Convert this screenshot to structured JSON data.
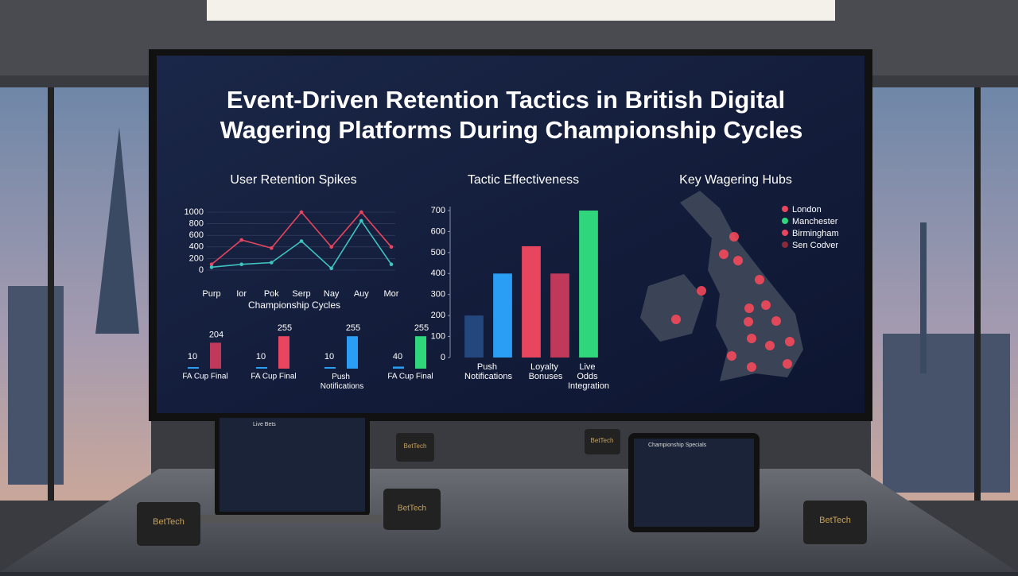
{
  "title_lines": [
    "Event-Driven Retention Tactics in British Digital",
    "Wagering Platforms During Championship Cycles"
  ],
  "chart_data": [
    {
      "type": "line",
      "title": "User Retention Spikes",
      "x_label": "Championship Cycles",
      "categories": [
        "Purp",
        "Ior",
        "Pok",
        "Serp",
        "Nay",
        "Auy",
        "Mor"
      ],
      "series": [
        {
          "color": "#e8455e",
          "values": [
            100,
            520,
            380,
            1000,
            400,
            1000,
            400
          ]
        },
        {
          "color": "#3fc4c0",
          "values": [
            50,
            100,
            130,
            500,
            30,
            850,
            100
          ]
        }
      ],
      "ylim": [
        0,
        1000
      ],
      "yticks": [
        0,
        200,
        400,
        600,
        800,
        1000
      ]
    },
    {
      "type": "bar",
      "title": "Tactic Effectiveness",
      "categories": [
        "Push Notifications",
        null,
        "Loyalty Bonuses",
        null,
        "Live Odds Integration"
      ],
      "values": [
        200,
        400,
        530,
        400,
        700
      ],
      "colors": [
        "#24487e",
        "#2a9df4",
        "#e8455e",
        "#c0395a",
        "#2fd67b"
      ],
      "ylim": [
        0,
        700
      ],
      "yticks": [
        0,
        100,
        200,
        300,
        400,
        500,
        600,
        700
      ]
    }
  ],
  "mini_stats": [
    {
      "label": "FA Cup Final",
      "high": 204,
      "low": 10,
      "color": "#c0395a"
    },
    {
      "label": "FA Cup Final",
      "high": 255,
      "low": 10,
      "color": "#e8455e"
    },
    {
      "label": "Push Notifications",
      "high": 255,
      "low": 10,
      "color": "#2a9df4"
    },
    {
      "label": "FA Cup Final",
      "high": 255,
      "low": 40,
      "color": "#2fd67b"
    }
  ],
  "map": {
    "title": "Key Wagering Hubs",
    "legend": [
      {
        "label": "London",
        "color": "#e8455e"
      },
      {
        "label": "Manchester",
        "color": "#2fd67b"
      },
      {
        "label": "Birmingham",
        "color": "#e8455e"
      },
      {
        "label": "Sen Codver",
        "color": "#8a2a3a"
      }
    ]
  },
  "devices": {
    "laptop_title": "Live Bets",
    "tablet_title": "Championship Specials",
    "mug_brand": "BetTech"
  }
}
